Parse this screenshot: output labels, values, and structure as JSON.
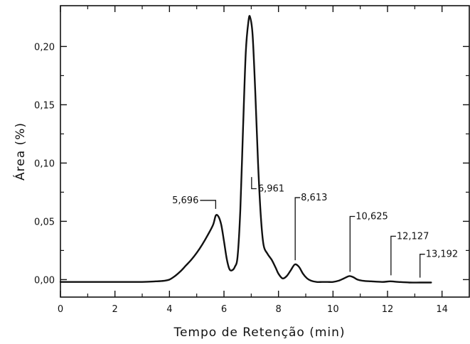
{
  "chart_data": {
    "type": "line",
    "xlabel": "Tempo de Retenção (min)",
    "ylabel": "Área (%)",
    "xlim": [
      0,
      15
    ],
    "ylim": [
      -0.015,
      0.235
    ],
    "x_ticks": [
      {
        "value": 0,
        "label": "0"
      },
      {
        "value": 2,
        "label": "2"
      },
      {
        "value": 4,
        "label": "4"
      },
      {
        "value": 6,
        "label": "6"
      },
      {
        "value": 8,
        "label": "8"
      },
      {
        "value": 10,
        "label": "10"
      },
      {
        "value": 12,
        "label": "12"
      },
      {
        "value": 14,
        "label": "14"
      }
    ],
    "x_minor_step": 1,
    "y_ticks": [
      {
        "value": 0.0,
        "label": "0,00"
      },
      {
        "value": 0.05,
        "label": "0,05"
      },
      {
        "value": 0.1,
        "label": "0,10"
      },
      {
        "value": 0.15,
        "label": "0,15"
      },
      {
        "value": 0.2,
        "label": "0,20"
      }
    ],
    "y_minor_step": 0.025,
    "grid": false,
    "series": [
      {
        "x": [
          0.0,
          1.0,
          2.0,
          3.0,
          3.5,
          3.8,
          4.0,
          4.2,
          4.4,
          4.6,
          4.8,
          5.0,
          5.2,
          5.4,
          5.6,
          5.7,
          5.8,
          5.9,
          6.0,
          6.1,
          6.2,
          6.3,
          6.4,
          6.5,
          6.6,
          6.7,
          6.8,
          6.9,
          6.96,
          7.05,
          7.15,
          7.25,
          7.35,
          7.45,
          7.6,
          7.75,
          7.9,
          8.0,
          8.15,
          8.3,
          8.45,
          8.6,
          8.75,
          8.9,
          9.05,
          9.2,
          9.4,
          9.6,
          9.8,
          10.0,
          10.2,
          10.4,
          10.6,
          10.75,
          10.9,
          11.1,
          11.4,
          11.8,
          12.1,
          12.4,
          12.8,
          13.2,
          13.6
        ],
        "y": [
          -0.002,
          -0.002,
          -0.002,
          -0.002,
          -0.0015,
          -0.001,
          0.0,
          0.003,
          0.007,
          0.012,
          0.017,
          0.023,
          0.03,
          0.038,
          0.047,
          0.055,
          0.054,
          0.047,
          0.033,
          0.018,
          0.009,
          0.008,
          0.011,
          0.02,
          0.06,
          0.13,
          0.195,
          0.222,
          0.225,
          0.21,
          0.16,
          0.1,
          0.055,
          0.03,
          0.022,
          0.017,
          0.01,
          0.005,
          0.001,
          0.003,
          0.008,
          0.013,
          0.011,
          0.005,
          0.001,
          -0.001,
          -0.002,
          -0.002,
          -0.002,
          -0.002,
          -0.001,
          0.001,
          0.003,
          0.002,
          0.0,
          -0.001,
          -0.0015,
          -0.002,
          -0.0015,
          -0.002,
          -0.0025,
          -0.0025,
          -0.0025
        ]
      }
    ],
    "annotations": [
      {
        "text": "5,696",
        "x": 5.696,
        "y": 0.057,
        "style": "left"
      },
      {
        "text": "6,961",
        "x": 6.961,
        "y": 0.09,
        "style": "inside"
      },
      {
        "text": "8,613",
        "x": 8.613,
        "y": 0.013,
        "style": "right"
      },
      {
        "text": "10,625",
        "x": 10.625,
        "y": 0.003,
        "style": "right"
      },
      {
        "text": "12,127",
        "x": 12.127,
        "y": 0.0,
        "style": "right"
      },
      {
        "text": "13,192",
        "x": 13.192,
        "y": -0.002,
        "style": "right"
      }
    ]
  }
}
